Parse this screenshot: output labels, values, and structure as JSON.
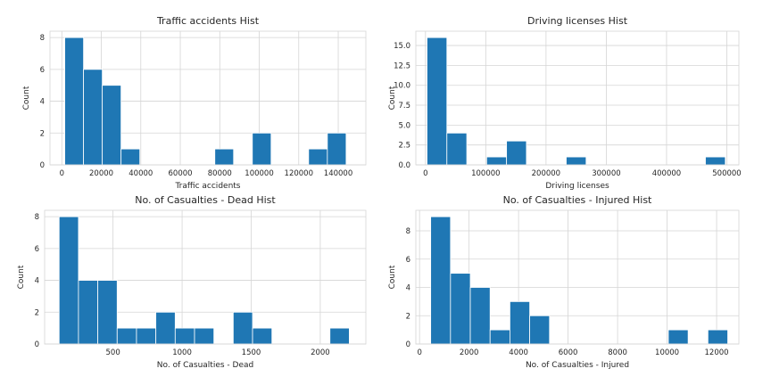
{
  "chart_data": [
    {
      "type": "bar",
      "title": "Traffic accidents Hist",
      "xlabel": "Traffic accidents",
      "ylabel": "Count",
      "xlim": [
        -6000,
        154000
      ],
      "ylim": [
        0,
        8.4
      ],
      "xticks": [
        0,
        20000,
        40000,
        60000,
        80000,
        100000,
        120000,
        140000
      ],
      "xtick_labels": [
        "0",
        "20000",
        "40000",
        "60000",
        "80000",
        "100000",
        "120000",
        "140000"
      ],
      "yticks": [
        0,
        2,
        4,
        6,
        8
      ],
      "ytick_labels": [
        "0",
        "2",
        "4",
        "6",
        "8"
      ],
      "grid": true,
      "bins": [
        {
          "x0": 1500,
          "x1": 11000,
          "count": 8
        },
        {
          "x0": 11000,
          "x1": 20500,
          "count": 6
        },
        {
          "x0": 20500,
          "x1": 30000,
          "count": 5
        },
        {
          "x0": 30000,
          "x1": 39500,
          "count": 1
        },
        {
          "x0": 39500,
          "x1": 49000,
          "count": 0
        },
        {
          "x0": 49000,
          "x1": 58500,
          "count": 0
        },
        {
          "x0": 58500,
          "x1": 68000,
          "count": 0
        },
        {
          "x0": 68000,
          "x1": 77500,
          "count": 0
        },
        {
          "x0": 77500,
          "x1": 87000,
          "count": 1
        },
        {
          "x0": 87000,
          "x1": 96500,
          "count": 0
        },
        {
          "x0": 96500,
          "x1": 106000,
          "count": 2
        },
        {
          "x0": 106000,
          "x1": 115500,
          "count": 0
        },
        {
          "x0": 115500,
          "x1": 125000,
          "count": 0
        },
        {
          "x0": 125000,
          "x1": 134500,
          "count": 1
        },
        {
          "x0": 134500,
          "x1": 144000,
          "count": 2
        }
      ]
    },
    {
      "type": "bar",
      "title": "Driving licenses Hist",
      "xlabel": "Driving licenses",
      "ylabel": "Count",
      "xlim": [
        -16000,
        520000
      ],
      "ylim": [
        0,
        16.8
      ],
      "xticks": [
        0,
        100000,
        200000,
        300000,
        400000,
        500000
      ],
      "xtick_labels": [
        "0",
        "100000",
        "200000",
        "300000",
        "400000",
        "500000"
      ],
      "yticks": [
        0,
        2.5,
        5.0,
        7.5,
        10.0,
        12.5,
        15.0
      ],
      "ytick_labels": [
        "0.0",
        "2.5",
        "5.0",
        "7.5",
        "10.0",
        "12.5",
        "15.0"
      ],
      "grid": true,
      "bins": [
        {
          "x0": 2500,
          "x1": 35500,
          "count": 16
        },
        {
          "x0": 35500,
          "x1": 68500,
          "count": 4
        },
        {
          "x0": 68500,
          "x1": 101500,
          "count": 0
        },
        {
          "x0": 101500,
          "x1": 134500,
          "count": 1
        },
        {
          "x0": 134500,
          "x1": 167500,
          "count": 3
        },
        {
          "x0": 167500,
          "x1": 200500,
          "count": 0
        },
        {
          "x0": 200500,
          "x1": 233500,
          "count": 0
        },
        {
          "x0": 233500,
          "x1": 266500,
          "count": 1
        },
        {
          "x0": 266500,
          "x1": 299500,
          "count": 0
        },
        {
          "x0": 299500,
          "x1": 332500,
          "count": 0
        },
        {
          "x0": 332500,
          "x1": 365500,
          "count": 0
        },
        {
          "x0": 365500,
          "x1": 398500,
          "count": 0
        },
        {
          "x0": 398500,
          "x1": 431500,
          "count": 0
        },
        {
          "x0": 431500,
          "x1": 464500,
          "count": 0
        },
        {
          "x0": 464500,
          "x1": 497500,
          "count": 1
        }
      ]
    },
    {
      "type": "bar",
      "title": "No. of Casualties - Dead Hist",
      "xlabel": "No. of Casualties - Dead",
      "ylabel": "Count",
      "xlim": [
        5,
        2330
      ],
      "ylim": [
        0,
        8.4
      ],
      "xticks": [
        500,
        1000,
        1500,
        2000
      ],
      "xtick_labels": [
        "500",
        "1000",
        "1500",
        "2000"
      ],
      "yticks": [
        0,
        2,
        4,
        6,
        8
      ],
      "ytick_labels": [
        "0",
        "2",
        "4",
        "6",
        "8"
      ],
      "grid": true,
      "bins": [
        {
          "x0": 110,
          "x1": 250,
          "count": 8
        },
        {
          "x0": 250,
          "x1": 390,
          "count": 4
        },
        {
          "x0": 390,
          "x1": 530,
          "count": 4
        },
        {
          "x0": 530,
          "x1": 670,
          "count": 1
        },
        {
          "x0": 670,
          "x1": 810,
          "count": 1
        },
        {
          "x0": 810,
          "x1": 950,
          "count": 2
        },
        {
          "x0": 950,
          "x1": 1090,
          "count": 1
        },
        {
          "x0": 1090,
          "x1": 1230,
          "count": 1
        },
        {
          "x0": 1230,
          "x1": 1370,
          "count": 0
        },
        {
          "x0": 1370,
          "x1": 1510,
          "count": 2
        },
        {
          "x0": 1510,
          "x1": 1650,
          "count": 1
        },
        {
          "x0": 1650,
          "x1": 1790,
          "count": 0
        },
        {
          "x0": 1790,
          "x1": 1930,
          "count": 0
        },
        {
          "x0": 1930,
          "x1": 2070,
          "count": 0
        },
        {
          "x0": 2070,
          "x1": 2210,
          "count": 1
        }
      ]
    },
    {
      "type": "bar",
      "title": "No. of Casualties - Injured Hist",
      "xlabel": "No. of Casualties - Injured",
      "ylabel": "Count",
      "xlim": [
        -150,
        12900
      ],
      "ylim": [
        0,
        9.45
      ],
      "xticks": [
        0,
        2000,
        4000,
        6000,
        8000,
        10000,
        12000
      ],
      "xtick_labels": [
        "0",
        "2000",
        "4000",
        "6000",
        "8000",
        "10000",
        "12000"
      ],
      "yticks": [
        0,
        2,
        4,
        6,
        8
      ],
      "ytick_labels": [
        "0",
        "2",
        "4",
        "6",
        "8"
      ],
      "grid": true,
      "bins": [
        {
          "x0": 450,
          "x1": 1250,
          "count": 9
        },
        {
          "x0": 1250,
          "x1": 2050,
          "count": 5
        },
        {
          "x0": 2050,
          "x1": 2850,
          "count": 4
        },
        {
          "x0": 2850,
          "x1": 3650,
          "count": 1
        },
        {
          "x0": 3650,
          "x1": 4450,
          "count": 3
        },
        {
          "x0": 4450,
          "x1": 5250,
          "count": 2
        },
        {
          "x0": 5250,
          "x1": 6050,
          "count": 0
        },
        {
          "x0": 6050,
          "x1": 6850,
          "count": 0
        },
        {
          "x0": 6850,
          "x1": 7650,
          "count": 0
        },
        {
          "x0": 7650,
          "x1": 8450,
          "count": 0
        },
        {
          "x0": 8450,
          "x1": 9250,
          "count": 0
        },
        {
          "x0": 9250,
          "x1": 10050,
          "count": 0
        },
        {
          "x0": 10050,
          "x1": 10850,
          "count": 1
        },
        {
          "x0": 10850,
          "x1": 11650,
          "count": 0
        },
        {
          "x0": 11650,
          "x1": 12450,
          "count": 1
        }
      ]
    }
  ],
  "colors": {
    "bar": "#1f77b4",
    "grid": "#d5d5d5",
    "text": "#262626"
  }
}
